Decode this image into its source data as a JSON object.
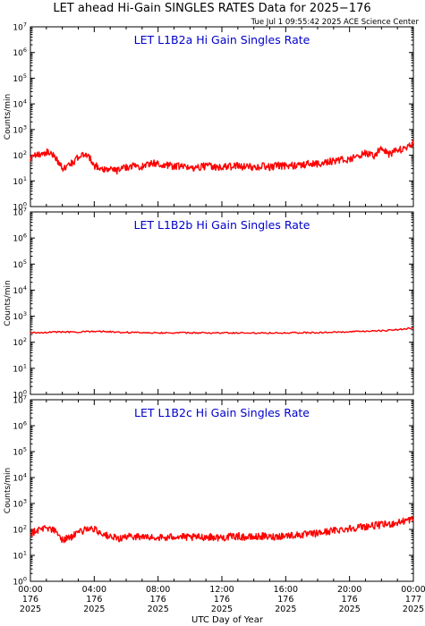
{
  "title": "LET ahead Hi-Gain SINGLES RATES Data for 2025−176",
  "timestamp": "Tue Jul  1 09:55:42 2025 ACE Science Center",
  "xlabel": "UTC Day of Year",
  "ylabel": "Counts/min",
  "colors": {
    "series": "#ff0000",
    "panel_title": "#0000cc",
    "axes": "#000000"
  },
  "y_ticks": [
    {
      "base": "10",
      "exp": "0"
    },
    {
      "base": "10",
      "exp": "1"
    },
    {
      "base": "10",
      "exp": "2"
    },
    {
      "base": "10",
      "exp": "3"
    },
    {
      "base": "10",
      "exp": "4"
    },
    {
      "base": "10",
      "exp": "5"
    },
    {
      "base": "10",
      "exp": "6"
    },
    {
      "base": "10",
      "exp": "7"
    }
  ],
  "x_ticks": [
    {
      "time": "00:00",
      "doy": "176",
      "year": "2025"
    },
    {
      "time": "04:00",
      "doy": "176",
      "year": "2025"
    },
    {
      "time": "08:00",
      "doy": "176",
      "year": "2025"
    },
    {
      "time": "12:00",
      "doy": "176",
      "year": "2025"
    },
    {
      "time": "16:00",
      "doy": "176",
      "year": "2025"
    },
    {
      "time": "20:00",
      "doy": "176",
      "year": "2025"
    },
    {
      "time": "00:00",
      "doy": "177",
      "year": "2025"
    }
  ],
  "chart_data": [
    {
      "type": "line",
      "title": "LET L1B2a Hi Gain Singles Rate",
      "yscale": "log",
      "ylim": [
        1,
        10000000
      ],
      "xlim_hours": [
        0,
        24
      ],
      "series": [
        {
          "x": [
            0,
            0.5,
            1,
            1.5,
            2,
            2.5,
            3,
            3.5,
            4,
            4.5,
            5,
            5.5,
            6,
            6.5,
            7,
            7.5,
            8,
            8.5,
            9,
            9.5,
            10,
            10.5,
            11,
            11.5,
            12,
            12.5,
            13,
            13.5,
            14,
            14.5,
            15,
            15.5,
            16,
            16.5,
            17,
            17.5,
            18,
            18.5,
            19,
            19.5,
            20,
            20.5,
            21,
            21.5,
            22,
            22.5,
            23,
            23.5,
            24
          ],
          "values": [
            70,
            110,
            130,
            100,
            30,
            45,
            80,
            120,
            40,
            30,
            28,
            25,
            35,
            40,
            35,
            50,
            45,
            40,
            38,
            35,
            32,
            35,
            38,
            36,
            34,
            36,
            38,
            35,
            35,
            38,
            34,
            40,
            38,
            40,
            42,
            48,
            45,
            55,
            60,
            70,
            65,
            90,
            120,
            90,
            180,
            110,
            150,
            200,
            280
          ]
        }
      ]
    },
    {
      "type": "line",
      "title": "LET L1B2b Hi Gain Singles Rate",
      "yscale": "log",
      "ylim": [
        1,
        10000000
      ],
      "xlim_hours": [
        0,
        24
      ],
      "series": [
        {
          "x": [
            0,
            1,
            2,
            3,
            4,
            5,
            6,
            7,
            8,
            9,
            10,
            11,
            12,
            13,
            14,
            15,
            16,
            17,
            18,
            19,
            20,
            21,
            22,
            23,
            24
          ],
          "values": [
            230,
            240,
            250,
            240,
            270,
            250,
            240,
            235,
            232,
            230,
            228,
            228,
            227,
            228,
            228,
            230,
            232,
            232,
            235,
            240,
            250,
            260,
            280,
            300,
            350
          ]
        }
      ]
    },
    {
      "type": "line",
      "title": "LET L1B2c Hi Gain Singles Rate",
      "yscale": "log",
      "ylim": [
        1,
        10000000
      ],
      "xlim_hours": [
        0,
        24
      ],
      "series": [
        {
          "x": [
            0,
            0.5,
            1,
            1.5,
            2,
            2.5,
            3,
            3.5,
            4,
            4.5,
            5,
            5.5,
            6,
            6.5,
            7,
            7.5,
            8,
            8.5,
            9,
            9.5,
            10,
            10.5,
            11,
            11.5,
            12,
            12.5,
            13,
            13.5,
            14,
            14.5,
            15,
            15.5,
            16,
            16.5,
            17,
            17.5,
            18,
            18.5,
            19,
            19.5,
            20,
            20.5,
            21,
            21.5,
            22,
            22.5,
            23,
            23.5,
            24
          ],
          "values": [
            70,
            100,
            120,
            90,
            40,
            50,
            70,
            110,
            100,
            70,
            50,
            45,
            50,
            55,
            52,
            48,
            50,
            46,
            55,
            52,
            48,
            50,
            52,
            50,
            48,
            52,
            55,
            50,
            50,
            55,
            50,
            55,
            58,
            60,
            62,
            65,
            70,
            80,
            90,
            100,
            110,
            120,
            130,
            140,
            150,
            160,
            180,
            220,
            250
          ]
        }
      ]
    }
  ]
}
